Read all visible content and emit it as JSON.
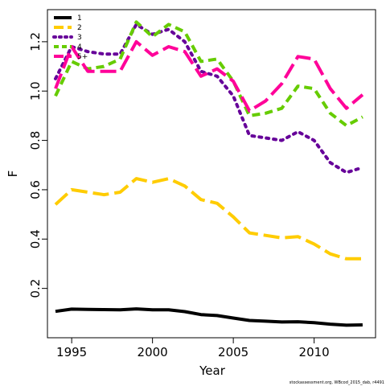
{
  "chart_data": {
    "type": "line",
    "xlabel": "Year",
    "ylabel": "F",
    "xlim": [
      1993.5,
      2013.8
    ],
    "ylim": [
      0.0,
      1.33
    ],
    "x_ticks": [
      1995,
      2000,
      2005,
      2010
    ],
    "y_ticks": [
      0.2,
      0.4,
      0.6,
      0.8,
      1.0,
      1.2
    ],
    "x_tick_labels": [
      "1995",
      "2000",
      "2005",
      "2010"
    ],
    "y_tick_labels": [
      "0.2",
      "0.4",
      "0.6",
      "0.8",
      "1.0",
      "1.2"
    ],
    "legend_position": "top-left",
    "footnote": "stockassessment.org, WBcod_2015_dab, r4491",
    "x": [
      1994,
      1995,
      1996,
      1997,
      1998,
      1999,
      2000,
      2001,
      2002,
      2003,
      2004,
      2005,
      2006,
      2007,
      2008,
      2009,
      2010,
      2011,
      2012,
      2013
    ],
    "series": [
      {
        "name": "1",
        "color": "#000000",
        "dash": "solid",
        "values": [
          0.107,
          0.116,
          0.115,
          0.114,
          0.113,
          0.117,
          0.113,
          0.113,
          0.106,
          0.094,
          0.09,
          0.08,
          0.07,
          0.067,
          0.064,
          0.065,
          0.061,
          0.055,
          0.051,
          0.052
        ]
      },
      {
        "name": "2",
        "color": "#FFCC00",
        "dash": "longdash",
        "values": [
          0.54,
          0.6,
          0.59,
          0.58,
          0.59,
          0.645,
          0.63,
          0.645,
          0.615,
          0.56,
          0.545,
          0.49,
          0.425,
          0.415,
          0.405,
          0.41,
          0.38,
          0.34,
          0.32,
          0.32
        ]
      },
      {
        "name": "3",
        "color": "#660099",
        "dash": "dotted",
        "values": [
          1.05,
          1.18,
          1.16,
          1.15,
          1.15,
          1.27,
          1.23,
          1.25,
          1.2,
          1.08,
          1.06,
          0.98,
          0.82,
          0.81,
          0.8,
          0.835,
          0.8,
          0.71,
          0.67,
          0.69
        ]
      },
      {
        "name": "4",
        "color": "#66CC00",
        "dash": "dashed",
        "values": [
          0.98,
          1.12,
          1.09,
          1.1,
          1.13,
          1.28,
          1.22,
          1.27,
          1.24,
          1.12,
          1.13,
          1.04,
          0.9,
          0.91,
          0.93,
          1.02,
          1.01,
          0.91,
          0.86,
          0.895
        ]
      },
      {
        "name": "5+",
        "color": "#FF0099",
        "dash": "longdash",
        "values": [
          1.01,
          1.18,
          1.08,
          1.08,
          1.08,
          1.2,
          1.145,
          1.18,
          1.16,
          1.06,
          1.09,
          1.04,
          0.92,
          0.96,
          1.03,
          1.14,
          1.13,
          1.01,
          0.93,
          0.985
        ]
      }
    ]
  }
}
